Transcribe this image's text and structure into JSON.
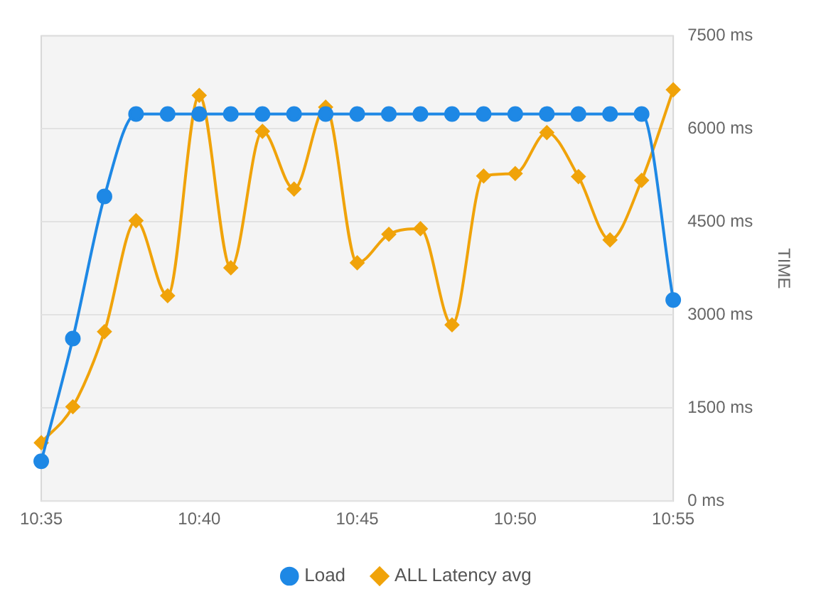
{
  "chart_data": {
    "type": "line",
    "ylabel": "TIME",
    "categories": [
      "10:35",
      null,
      null,
      null,
      null,
      "10:40",
      null,
      null,
      null,
      null,
      "10:45",
      null,
      null,
      null,
      null,
      "10:50",
      null,
      null,
      null,
      null,
      "10:55"
    ],
    "series": [
      {
        "name": "Load",
        "color": "#1e88e5",
        "marker": "circle",
        "values": [
          640,
          2620,
          4910,
          6240,
          6240,
          6240,
          6240,
          6240,
          6240,
          6240,
          6240,
          6240,
          6240,
          6240,
          6240,
          6240,
          6240,
          6240,
          6240,
          6240,
          3240
        ]
      },
      {
        "name": "ALL Latency avg",
        "color": "#f0a30a",
        "marker": "diamond",
        "values": [
          940,
          1520,
          2730,
          4520,
          3310,
          6540,
          3760,
          5960,
          5030,
          6350,
          3840,
          4300,
          4390,
          2840,
          5240,
          5280,
          5940,
          5230,
          4210,
          5170,
          6630
        ]
      }
    ],
    "ylim": [
      0,
      7500
    ],
    "yticks": [
      {
        "value": 0,
        "label": "0 ms"
      },
      {
        "value": 1500,
        "label": "1500 ms"
      },
      {
        "value": 3000,
        "label": "3000 ms"
      },
      {
        "value": 4500,
        "label": "4500 ms"
      },
      {
        "value": 6000,
        "label": "6000 ms"
      },
      {
        "value": 7500,
        "label": "7500 ms"
      }
    ],
    "grid": "y",
    "legend": "bottom"
  }
}
